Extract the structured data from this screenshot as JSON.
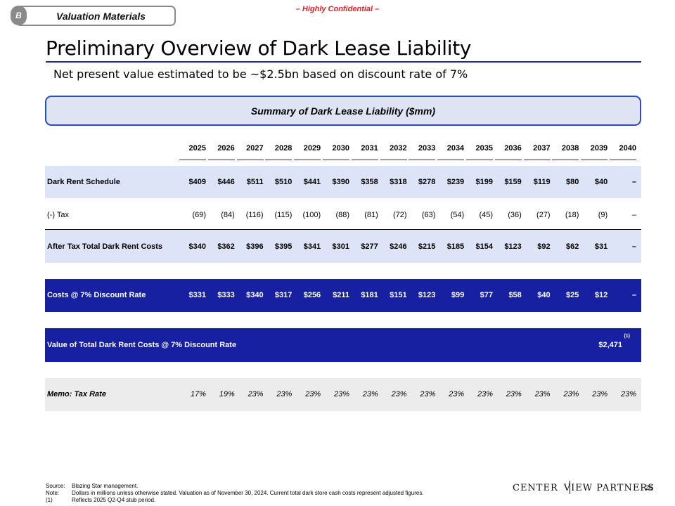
{
  "header": {
    "badge": "B",
    "section": "Valuation Materials",
    "confidential": "– Highly Confidential –"
  },
  "title": "Preliminary Overview of Dark Lease Liability",
  "subtitle": "Net present value estimated to be ~$2.5bn based on discount rate of 7%",
  "summary_title": "Summary of Dark Lease Liability ($mm)",
  "years": [
    "2025",
    "2026",
    "2027",
    "2028",
    "2029",
    "2030",
    "2031",
    "2032",
    "2033",
    "2034",
    "2035",
    "2036",
    "2037",
    "2038",
    "2039",
    "2040"
  ],
  "rows": {
    "dark_rent": {
      "label": "Dark Rent Schedule",
      "values": [
        "$409",
        "$446",
        "$511",
        "$510",
        "$441",
        "$390",
        "$358",
        "$318",
        "$278",
        "$239",
        "$199",
        "$159",
        "$119",
        "$80",
        "$40",
        "–"
      ]
    },
    "tax": {
      "label": "(-) Tax",
      "values": [
        "(69)",
        "(84)",
        "(116)",
        "(115)",
        "(100)",
        "(88)",
        "(81)",
        "(72)",
        "(63)",
        "(54)",
        "(45)",
        "(36)",
        "(27)",
        "(18)",
        "(9)",
        "–"
      ]
    },
    "after_tax": {
      "label": "After Tax Total Dark Rent Costs",
      "values": [
        "$340",
        "$362",
        "$396",
        "$395",
        "$341",
        "$301",
        "$277",
        "$246",
        "$215",
        "$185",
        "$154",
        "$123",
        "$92",
        "$62",
        "$31",
        "–"
      ]
    },
    "discounted": {
      "label": "Costs @ 7% Discount Rate",
      "values": [
        "$331",
        "$333",
        "$340",
        "$317",
        "$256",
        "$211",
        "$181",
        "$151",
        "$123",
        "$99",
        "$77",
        "$58",
        "$40",
        "$25",
        "$12",
        "–"
      ]
    },
    "total_value": {
      "label": "Value of Total Dark Rent Costs @ 7% Discount Rate",
      "value": "$2,471",
      "footnote": "(1)"
    },
    "memo": {
      "label": "Memo: Tax Rate",
      "values": [
        "17%",
        "19%",
        "23%",
        "23%",
        "23%",
        "23%",
        "23%",
        "23%",
        "23%",
        "23%",
        "23%",
        "23%",
        "23%",
        "23%",
        "23%",
        "23%"
      ]
    }
  },
  "footer": {
    "source_key": "Source:",
    "source": "Blazing Star management.",
    "note_key": "Note:",
    "note": "Dollars in millions unless otherwise stated. Valuation as of November 30, 2024. Current total dark store cash costs represent adjusted figures.",
    "fn_key": "(1)",
    "fn": "Reflects 2025 Q2-Q4 stub period.",
    "logo_left": "CENTER",
    "logo_right": "VIEW PARTNERS",
    "page": "26"
  },
  "colors": {
    "accent": "#1a2f96",
    "dark_band": "#1620a0",
    "light_band": "#dde4f7",
    "confidential_red": "#d9262b"
  }
}
